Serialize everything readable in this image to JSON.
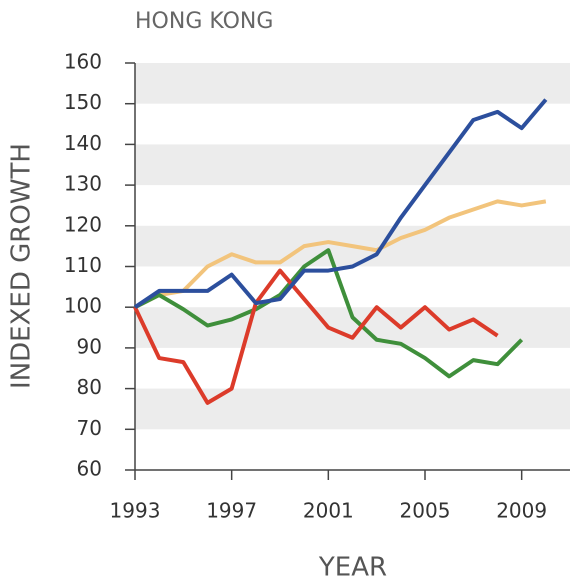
{
  "chart_data": {
    "type": "line",
    "title": "HONG KONG",
    "xlabel": "YEAR",
    "ylabel": "INDEXED GROWTH",
    "x": [
      1993,
      1994,
      1995,
      1996,
      1997,
      1998,
      1999,
      2000,
      2001,
      2002,
      2003,
      2004,
      2005,
      2006,
      2007,
      2008,
      2009,
      2010
    ],
    "series": [
      {
        "color": "#f2c47c",
        "values": [
          100,
          103,
          104,
          110,
          113,
          111,
          111,
          115,
          116,
          115,
          114,
          117,
          119,
          122,
          124,
          126,
          125,
          126
        ]
      },
      {
        "color": "#3f8f3b",
        "values": [
          100,
          103,
          99.5,
          95.5,
          97,
          99.5,
          103,
          110,
          114,
          97.5,
          92,
          91,
          87.5,
          83,
          87,
          86,
          92,
          null
        ]
      },
      {
        "color": "#dc3b2a",
        "values": [
          100,
          87.5,
          86.5,
          76.5,
          80,
          101,
          109,
          102,
          95,
          92.5,
          100,
          95,
          100,
          94.5,
          97,
          93,
          null,
          null
        ]
      },
      {
        "color": "#2c4f9d",
        "values": [
          100,
          104,
          104,
          104,
          108,
          101,
          102,
          109,
          109,
          110,
          113,
          122,
          130,
          138,
          146,
          148,
          144,
          151
        ]
      }
    ],
    "xlim": [
      1993,
      2011
    ],
    "xticks": [
      1993,
      1997,
      2001,
      2005,
      2009
    ],
    "ylim": [
      60,
      160
    ],
    "yticks": [
      60,
      70,
      80,
      90,
      100,
      110,
      120,
      130,
      140,
      150,
      160
    ],
    "bands": true
  }
}
